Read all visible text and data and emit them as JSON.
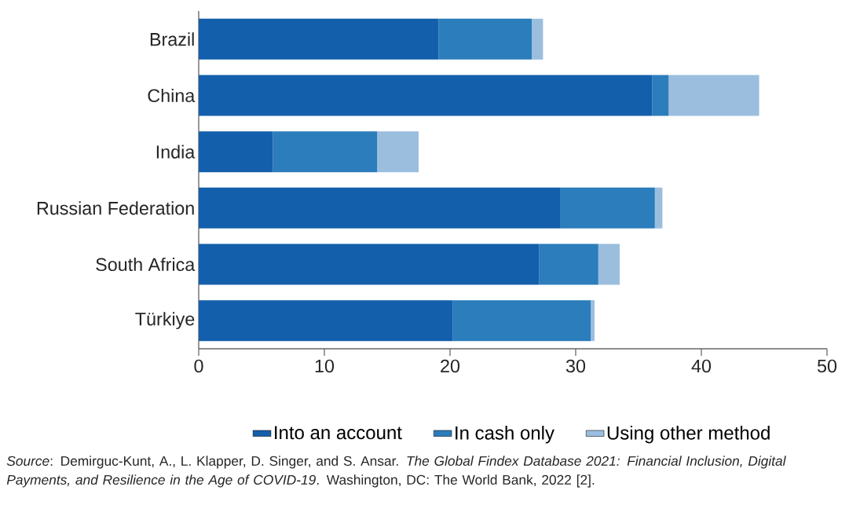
{
  "chart_data": {
    "type": "bar",
    "orientation": "horizontal",
    "stacked": true,
    "categories": [
      "Brazil",
      "China",
      "India",
      "Russian Federation",
      "South Africa",
      "Türkiye"
    ],
    "series": [
      {
        "name": "Into an account",
        "color": "#135fab",
        "values": [
          19.1,
          36.1,
          5.9,
          28.8,
          27.1,
          20.2
        ]
      },
      {
        "name": "In cash only",
        "color": "#2b7dbb",
        "values": [
          7.4,
          1.3,
          8.3,
          7.5,
          4.7,
          11.0
        ]
      },
      {
        "name": "Using other method",
        "color": "#9bbedf",
        "values": [
          0.9,
          7.2,
          3.3,
          0.6,
          1.7,
          0.3
        ]
      }
    ],
    "xlim": [
      0,
      50
    ],
    "xticks": [
      0,
      10,
      20,
      30,
      40,
      50
    ],
    "grid": false,
    "legend": "bottom",
    "annotations": [
      "*Source*: Demirguc-Kunt, A., L. Klapper, D. Singer, and S. Ansar. *The Global Findex Database 2021: Financial Inclusion, Digital Payments, and Resilience in the Age of COVID-19*. Washington, DC: The World Bank, 2022 [2]."
    ]
  }
}
